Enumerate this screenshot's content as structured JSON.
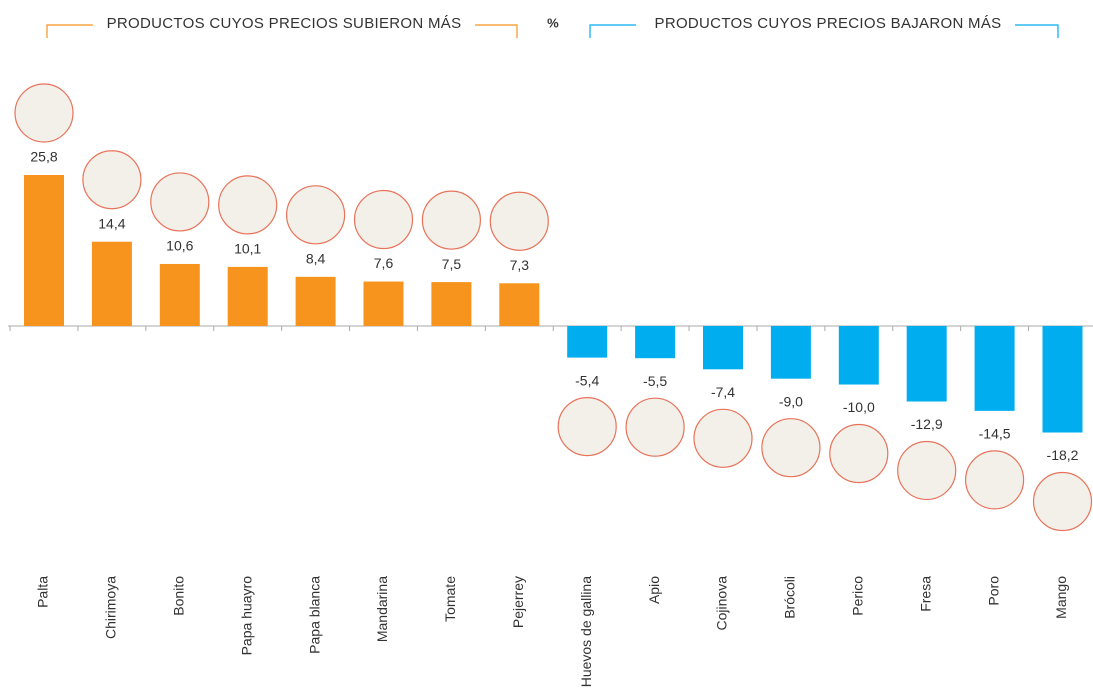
{
  "chart_data": {
    "type": "bar",
    "header_left": "PRODUCTOS CUYOS PRECIOS SUBIERON MÁS",
    "unit": "%",
    "header_right": "PRODUCTOS CUYOS PRECIOS BAJARON MÁS",
    "categories": [
      "Palta",
      "Chirimoya",
      "Bonito",
      "Papa huayro",
      "Papa blanca",
      "Mandarina",
      "Tomate",
      "Pejerrey",
      "Huevos de gallina",
      "Apio",
      "Cojinova",
      "Brócoli",
      "Perico",
      "Fresa",
      "Poro",
      "Mango"
    ],
    "values": [
      25.8,
      14.4,
      10.6,
      10.1,
      8.4,
      7.6,
      7.5,
      7.3,
      -5.4,
      -5.5,
      -7.4,
      -9.0,
      -10.0,
      -12.9,
      -14.5,
      -18.2
    ],
    "value_labels": [
      "25,8",
      "14,4",
      "10,6",
      "10,1",
      "8,4",
      "7,6",
      "7,5",
      "7,3",
      "-5,4",
      "-5,5",
      "-7,4",
      "-9,0",
      "-10,0",
      "-12,9",
      "-14,5",
      "-18,2"
    ],
    "colors": [
      "#f7941d",
      "#f7941d",
      "#f7941d",
      "#f7941d",
      "#f7941d",
      "#f7941d",
      "#f7941d",
      "#f7941d",
      "#00aeef",
      "#00aeef",
      "#00aeef",
      "#00aeef",
      "#00aeef",
      "#00aeef",
      "#00aeef",
      "#00aeef"
    ]
  }
}
